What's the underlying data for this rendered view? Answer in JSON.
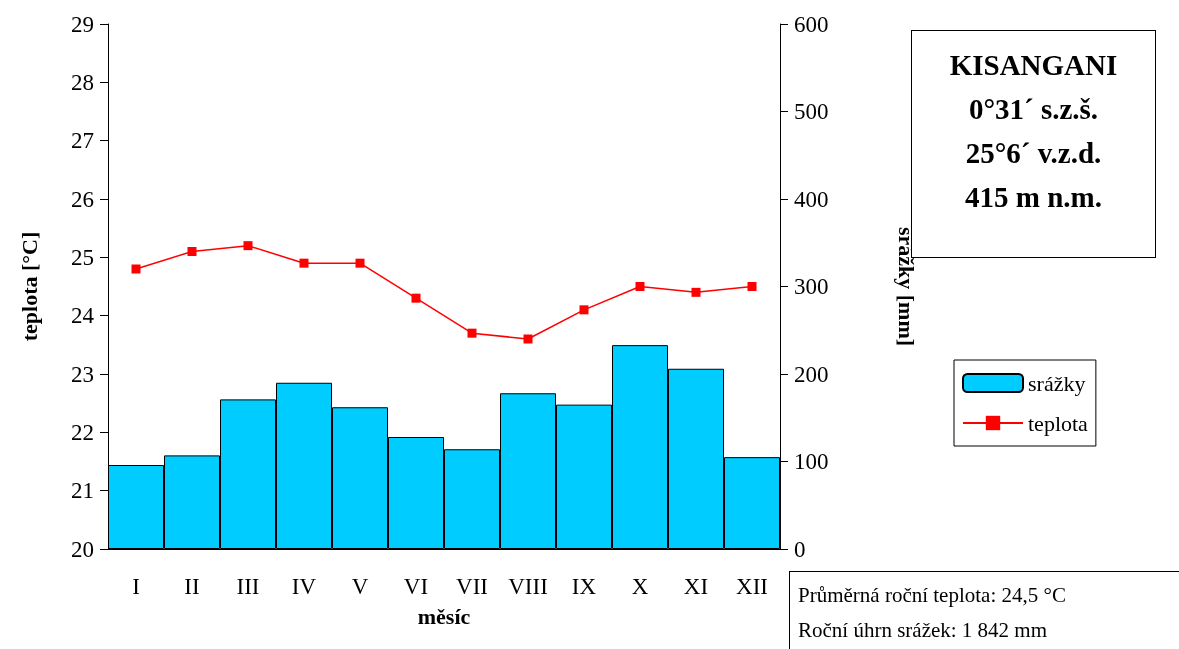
{
  "chart_data": {
    "type": "bar",
    "title": "KISANGANI",
    "subtitle": "0°31´ s.z.š.\n25°6´ v.z.d.\n415 m n.m.",
    "xlabel": "měsíc",
    "ylabel": "teplota [°C]",
    "y2label": "srážky [mm]",
    "categories": [
      "I",
      "II",
      "III",
      "IV",
      "V",
      "VI",
      "VII",
      "VIII",
      "IX",
      "X",
      "XI",
      "XII"
    ],
    "series": [
      {
        "name": "srážky",
        "axis": "y2",
        "color": "#00ccff",
        "values": [
          96,
          107,
          171,
          190,
          162,
          128,
          114,
          178,
          165,
          233,
          206,
          105
        ]
      },
      {
        "name": "teplota",
        "type": "line",
        "color": "#ff0000",
        "marker": "square",
        "values": [
          24.8,
          25.1,
          25.2,
          24.9,
          24.9,
          24.3,
          23.7,
          23.6,
          24.1,
          24.5,
          24.4,
          24.5
        ]
      }
    ],
    "ylim": [
      20,
      29
    ],
    "yticks": [
      20,
      21,
      22,
      23,
      24,
      25,
      26,
      27,
      28,
      29
    ],
    "y2lim": [
      0,
      600
    ],
    "y2ticks": [
      0,
      100,
      200,
      300,
      400,
      500,
      600
    ],
    "grid": false,
    "legend": "right",
    "annotations": [
      "Průměrná roční teplota: 24,5 °C",
      "Roční úhrn srážek: 1 842 mm"
    ]
  }
}
